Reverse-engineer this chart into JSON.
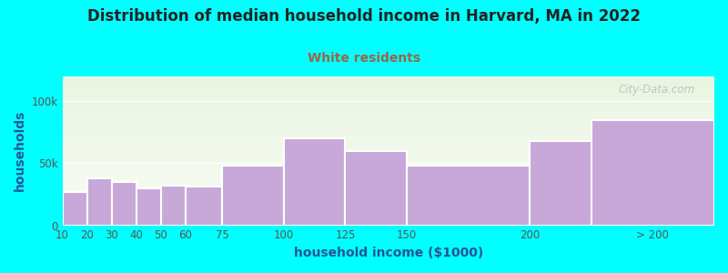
{
  "title": "Distribution of median household income in Harvard, MA in 2022",
  "subtitle": "White residents",
  "xlabel": "household income ($1000)",
  "ylabel": "households",
  "bar_lefts": [
    10,
    20,
    30,
    40,
    50,
    60,
    75,
    100,
    125,
    150,
    200,
    225
  ],
  "bar_widths": [
    10,
    10,
    10,
    10,
    10,
    15,
    25,
    25,
    25,
    50,
    25,
    50
  ],
  "bar_heights": [
    27000,
    38000,
    35000,
    30000,
    32000,
    31000,
    48000,
    70000,
    60000,
    48000,
    68000,
    85000
  ],
  "bar_color": "#c8a8d8",
  "bar_edge_color": "#ffffff",
  "outer_bg": "#00ffff",
  "title_color": "#222222",
  "subtitle_color": "#996644",
  "axis_label_color": "#225599",
  "tick_label_color": "#555555",
  "xtick_positions": [
    10,
    20,
    30,
    40,
    50,
    60,
    75,
    100,
    125,
    150,
    200,
    250
  ],
  "xtick_labels": [
    "10",
    "20",
    "30",
    "40",
    "50",
    "60",
    "75",
    "100",
    "125",
    "150",
    "200",
    "> 200"
  ],
  "ytick_labels": [
    "0",
    "50k",
    "100k"
  ],
  "ytick_values": [
    0,
    50000,
    100000
  ],
  "xlim": [
    10,
    275
  ],
  "ylim": [
    0,
    120000
  ],
  "watermark": "City-Data.com",
  "title_fontsize": 12,
  "subtitle_fontsize": 10,
  "label_fontsize": 10
}
